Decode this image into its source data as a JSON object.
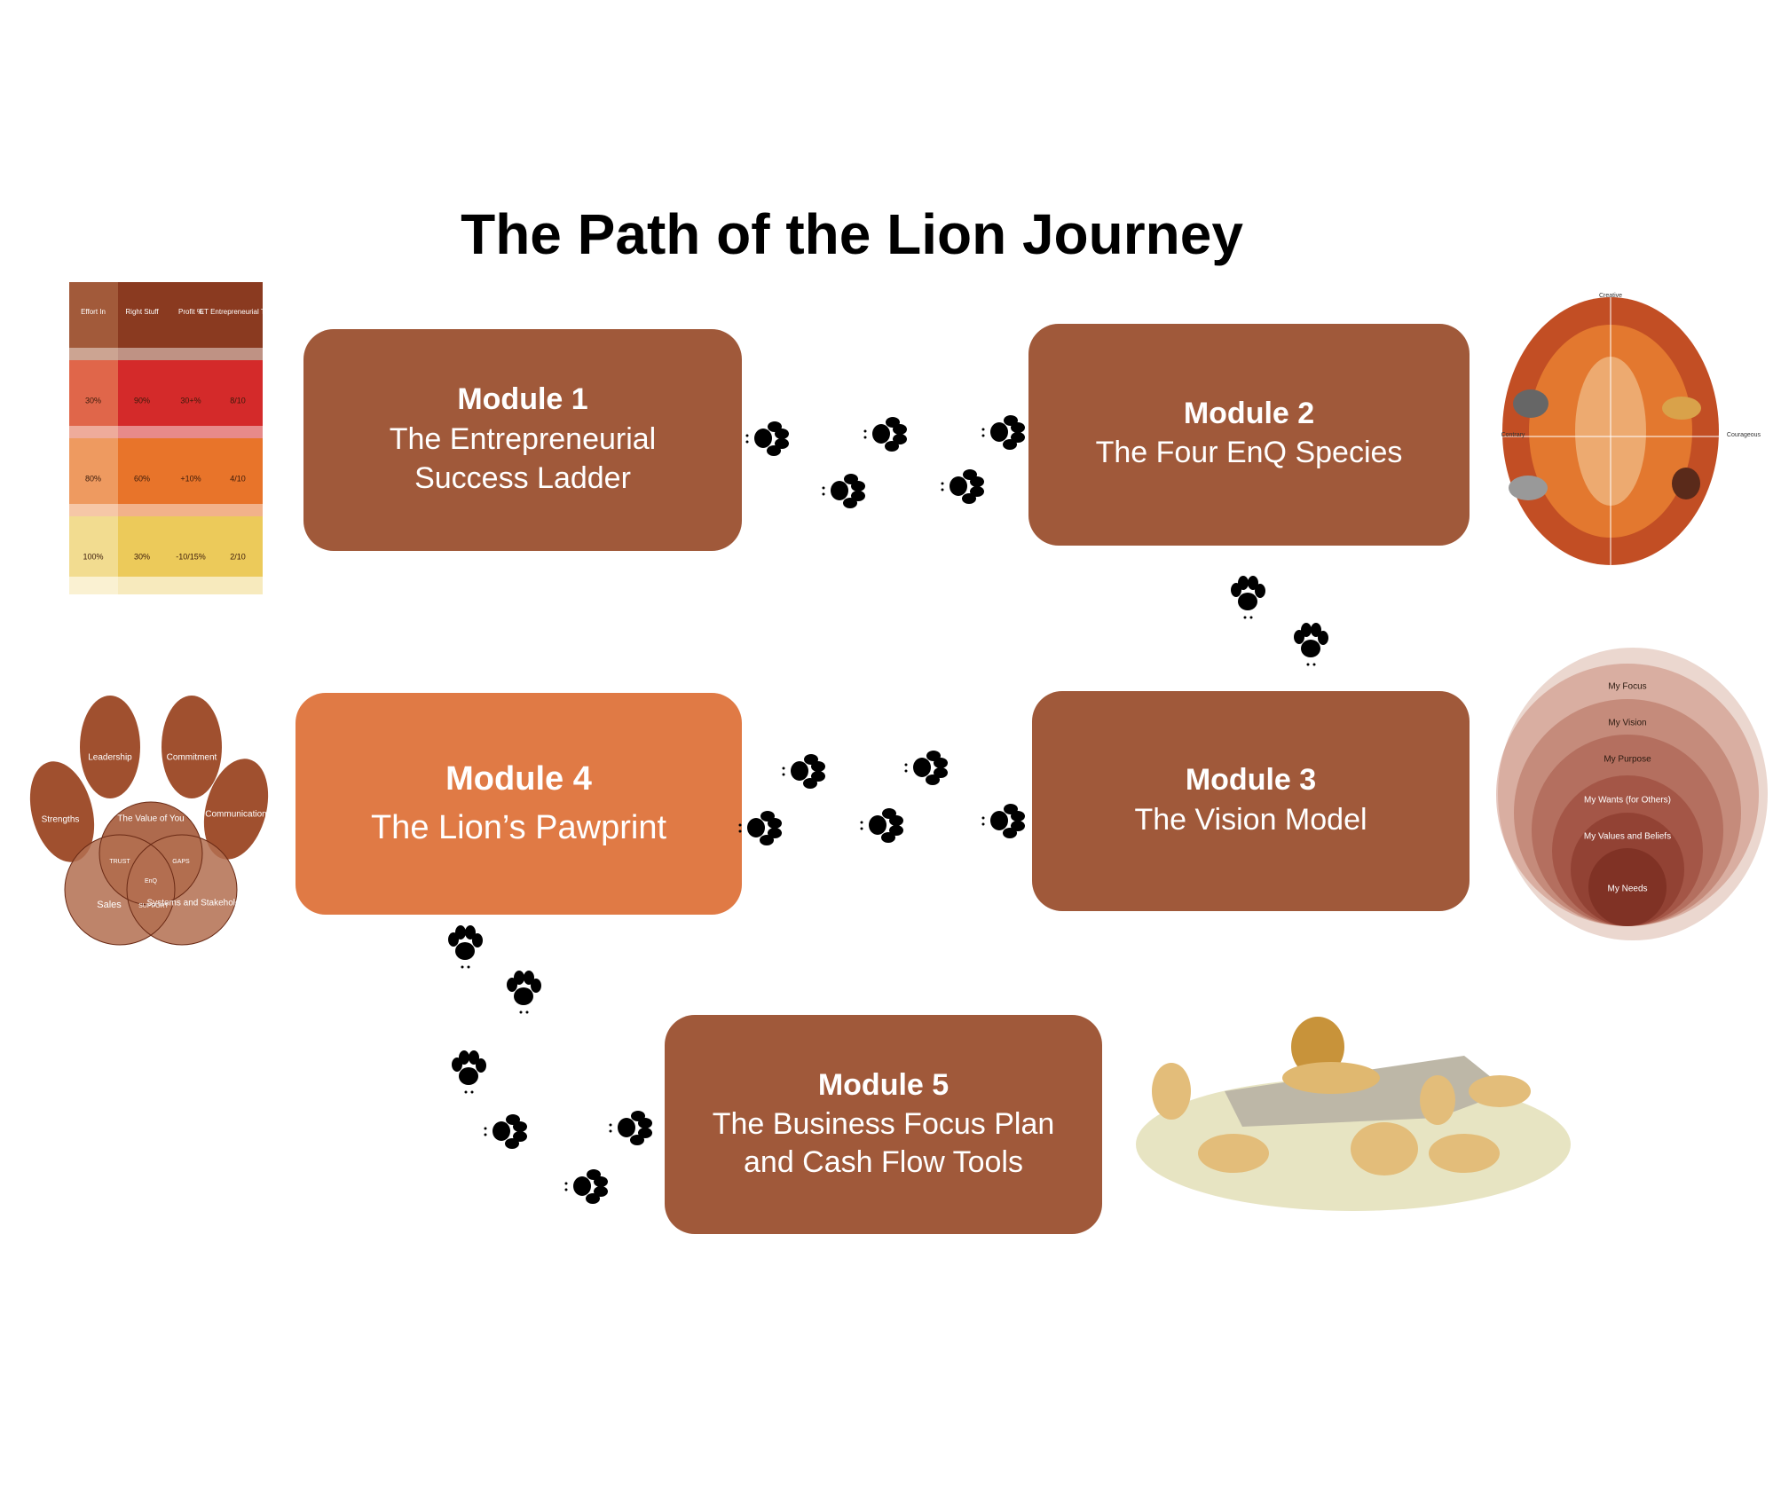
{
  "title": "The Path of the  Lion Journey",
  "modules": [
    {
      "heading": "Module 1",
      "lines": [
        "The Entrepreneurial",
        "Success Ladder"
      ]
    },
    {
      "heading": "Module 2",
      "lines": [
        "The Four EnQ Species"
      ]
    },
    {
      "heading": "Module 3",
      "lines": [
        "The Vision Model"
      ]
    },
    {
      "heading": "Module 4",
      "lines": [
        "The Lion’s Pawprint"
      ]
    },
    {
      "heading": "Module 5",
      "lines": [
        "The Business Focus Plan",
        "and Cash Flow Tools"
      ]
    }
  ],
  "ladder": {
    "headers": [
      "Effort In",
      "Right Stuff",
      "Profit %",
      "ET Entrepreneurial Thrill"
    ],
    "rows": [
      [
        "30%",
        "90%",
        "30+%",
        "8/10"
      ],
      [
        "80%",
        "60%",
        "+10%",
        "4/10"
      ],
      [
        "100%",
        "30%",
        "-10/15%",
        "2/10"
      ]
    ]
  },
  "species": {
    "labels": [
      "Creative",
      "Contrary",
      "Courageous"
    ]
  },
  "pawprint": {
    "labels": [
      "Leadership",
      "Commitment",
      "Strengths",
      "Communication",
      "The Value of You",
      "TRUST",
      "GAPS",
      "EnQ",
      "Sales",
      "SUPPORT",
      "Systems and Stakeholders"
    ]
  },
  "vision": {
    "labels": [
      "My Focus",
      "My Vision",
      "My Purpose",
      "My Wants (for Others)",
      "My Values and Beliefs",
      "My Needs"
    ]
  }
}
